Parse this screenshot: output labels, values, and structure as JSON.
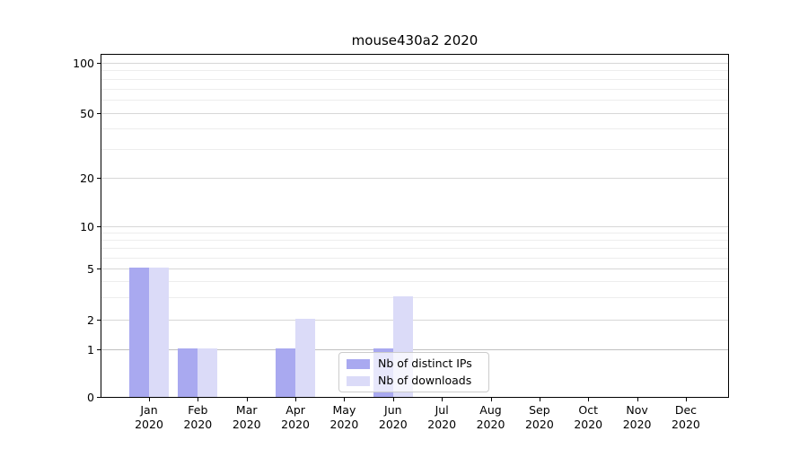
{
  "chart_data": {
    "type": "bar",
    "title": "mouse430a2 2020",
    "categories": [
      "Jan",
      "Feb",
      "Mar",
      "Apr",
      "May",
      "Jun",
      "Jul",
      "Aug",
      "Sep",
      "Oct",
      "Nov",
      "Dec"
    ],
    "category_year": "2020",
    "series": [
      {
        "name": "Nb of distinct IPs",
        "color": "#a9a9f0",
        "values": [
          5,
          1,
          0,
          1,
          0,
          1,
          0,
          0,
          0,
          0,
          0,
          0
        ]
      },
      {
        "name": "Nb of downloads",
        "color": "#dbdbf8",
        "values": [
          5,
          1,
          0,
          2,
          0,
          3,
          0,
          0,
          0,
          0,
          0,
          0
        ]
      }
    ],
    "yscale": "symlog",
    "yticks": [
      0,
      1,
      2,
      5,
      10,
      20,
      50,
      100
    ],
    "ytick_labels": [
      "0",
      "1",
      "2",
      "5",
      "10",
      "20",
      "50",
      "100"
    ],
    "minor_yticks": [
      3,
      4,
      6,
      7,
      8,
      9,
      30,
      40,
      60,
      70,
      80,
      90
    ],
    "ylim": [
      0,
      113
    ],
    "xlabel": "",
    "ylabel": "",
    "grid": "horizontal",
    "legend_position": "lower-center-right"
  }
}
